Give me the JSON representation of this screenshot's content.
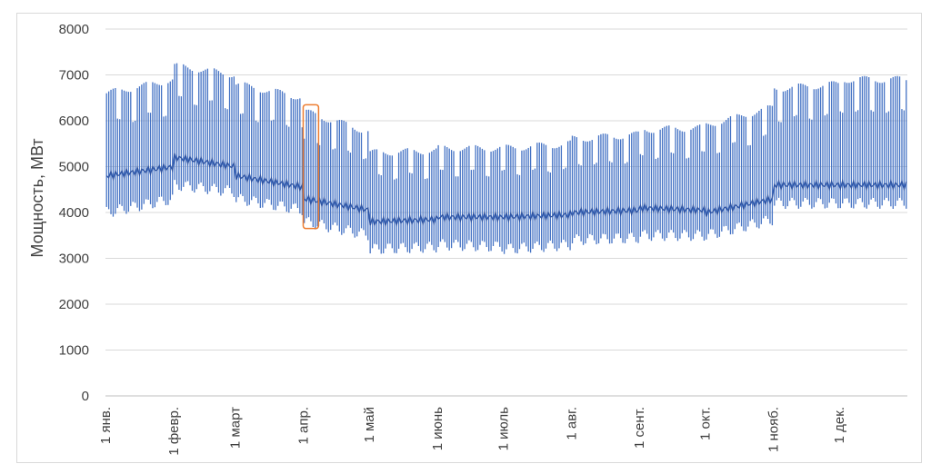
{
  "chart_data": {
    "type": "line",
    "title": "",
    "xlabel": "",
    "ylabel": "Мощность, МВт",
    "ylim": [
      0,
      8000
    ],
    "yticks": [
      "0",
      "1000",
      "2000",
      "3000",
      "4000",
      "5000",
      "6000",
      "7000",
      "8000"
    ],
    "xticks": [
      "1 янв.",
      "1 февр.",
      "1 март",
      "1 апр.",
      "1 май",
      "1 июнь",
      "1 июль",
      "1 авг.",
      "1 сент.",
      "1 окт.",
      "1 нояб.",
      "1 дек."
    ],
    "xtick_day": [
      0,
      31,
      59,
      90,
      120,
      151,
      181,
      212,
      243,
      273,
      304,
      334
    ],
    "days_in_year": 365,
    "grid": "horizontal",
    "series": [
      {
        "name": "",
        "color": "#4472c4",
        "representation": "hourly load; daily maximum and minimum per day of year, monthly envelope",
        "monthly_daily_max": [
          6600,
          7200,
          6800,
          6200,
          5300,
          5400,
          5400,
          5600,
          5800,
          5900,
          6700,
          6900
        ],
        "monthly_daily_min": [
          4000,
          4600,
          4300,
          3800,
          3200,
          3300,
          3200,
          3400,
          3500,
          3500,
          4200,
          4200
        ],
        "monthly_typical": [
          4800,
          5200,
          4800,
          4300,
          3800,
          3900,
          3900,
          4000,
          4100,
          4000,
          4600,
          4600
        ]
      }
    ],
    "highlight": {
      "label": "",
      "color": "#ed7d31",
      "x_from": "1 апр.",
      "x_to": "7 апр.",
      "y_from": 3650,
      "y_to": 6350
    }
  }
}
